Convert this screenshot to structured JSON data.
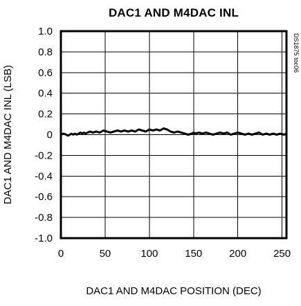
{
  "chart_data": {
    "type": "line",
    "title": "DAC1 AND M4DAC INL",
    "xlabel": "DAC1 AND M4DAC POSITION (DEC)",
    "ylabel": "DAC1 AND M4DAC INL (LSB)",
    "code_label": "DS1875 toc06",
    "xlim": [
      0,
      255
    ],
    "ylim": [
      -1.0,
      1.0
    ],
    "x_ticks": [
      0,
      50,
      100,
      150,
      200,
      250
    ],
    "y_ticks": [
      1.0,
      0.8,
      0.6,
      0.4,
      0.2,
      0,
      -0.2,
      -0.4,
      -0.6,
      -0.8,
      -1.0
    ],
    "x_tick_labels": [
      "0",
      "50",
      "100",
      "150",
      "200",
      "250"
    ],
    "y_tick_labels": [
      "1.0",
      "0.8",
      "0.6",
      "0.4",
      "0.2",
      "0",
      "-0.2",
      "-0.4",
      "-0.6",
      "-0.8",
      "-1.0"
    ],
    "grid": true,
    "legend": "none",
    "series": [
      {
        "x": [
          0,
          3,
          6,
          8,
          10,
          12,
          14,
          16,
          18,
          20,
          22,
          24,
          26,
          28,
          30,
          33,
          36,
          40,
          44,
          48,
          52,
          56,
          60,
          64,
          68,
          72,
          76,
          80,
          84,
          88,
          92,
          96,
          100,
          104,
          108,
          112,
          116,
          120,
          124,
          128,
          132,
          136,
          140,
          144,
          148,
          150,
          152,
          156,
          160,
          164,
          168,
          172,
          176,
          180,
          184,
          188,
          192,
          196,
          200,
          204,
          208,
          212,
          216,
          220,
          224,
          228,
          232,
          236,
          240,
          244,
          248,
          252,
          255
        ],
        "y": [
          0.0,
          0.01,
          0.0,
          -0.01,
          0.0,
          0.01,
          0.0,
          0.01,
          0.0,
          0.01,
          0.02,
          0.01,
          0.02,
          0.01,
          0.02,
          0.03,
          0.02,
          0.03,
          0.02,
          0.04,
          0.03,
          0.02,
          0.03,
          0.04,
          0.03,
          0.04,
          0.03,
          0.04,
          0.03,
          0.05,
          0.04,
          0.03,
          0.05,
          0.04,
          0.05,
          0.04,
          0.06,
          0.05,
          0.03,
          0.02,
          0.03,
          0.02,
          0.01,
          0.0,
          0.01,
          0.02,
          0.01,
          0.02,
          0.01,
          0.02,
          0.01,
          0.0,
          0.01,
          0.02,
          0.01,
          0.02,
          0.0,
          0.01,
          0.02,
          0.01,
          0.0,
          0.01,
          0.0,
          0.01,
          0.02,
          0.0,
          0.01,
          0.0,
          0.01,
          0.0,
          0.01,
          0.0,
          0.01
        ]
      }
    ]
  }
}
